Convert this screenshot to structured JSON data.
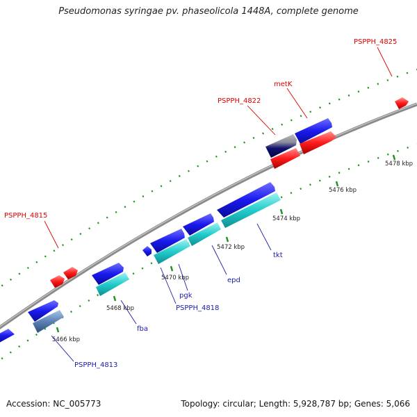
{
  "title": "Pseudomonas syringae pv. phaseolicola 1448A, complete genome",
  "footer": {
    "accession": "Accession: NC_005773",
    "stats": "Topology: circular; Length: 5,928,787 bp; Genes: 5,066"
  },
  "colors": {
    "backbone": "#888888",
    "tick_dots": "#1f8f1f",
    "red_feature": "#ff1a1a",
    "blue_feature": "#1a1aee",
    "cyan_feature": "#22cccc",
    "red_label": "#dd0000",
    "blue_label": "#1a1aaa"
  },
  "scale": {
    "tick_labels": [
      "5466 kbp",
      "5468 kbp",
      "5470 kbp",
      "5472 kbp",
      "5474 kbp",
      "5476 kbp",
      "5478 kbp"
    ]
  },
  "features": {
    "red": [
      {
        "label": "PSPPH_4815"
      },
      {
        "label": ""
      },
      {
        "label": "PSPPH_4822"
      },
      {
        "label": "metK"
      },
      {
        "label": ""
      },
      {
        "label": "PSPPH_4825"
      }
    ],
    "blue": [
      {
        "label": "PSPPH_4813"
      },
      {
        "label": ""
      },
      {
        "label": ""
      },
      {
        "label": ""
      },
      {
        "label": ""
      },
      {
        "label": ""
      },
      {
        "label": ""
      },
      {
        "label": ""
      }
    ],
    "cyan": [
      {
        "label": "fba"
      },
      {
        "label": "PSPPH_4818"
      },
      {
        "label": "pgk"
      },
      {
        "label": "epd"
      },
      {
        "label": "tkt"
      }
    ]
  }
}
